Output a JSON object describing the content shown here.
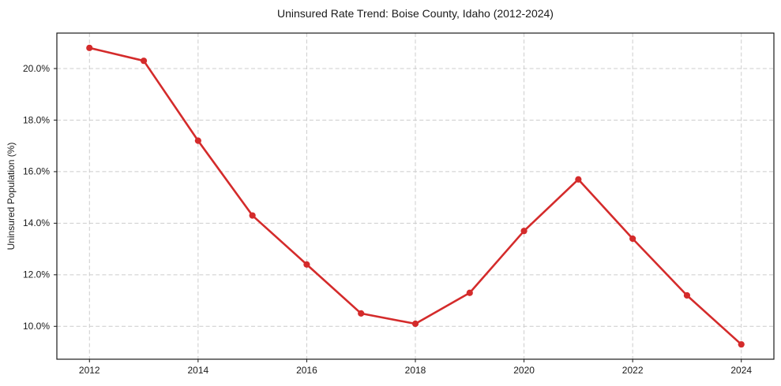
{
  "chart_data": {
    "type": "line",
    "title": "Uninsured Rate Trend: Boise County, Idaho (2012-2024)",
    "xlabel": "",
    "ylabel": "Uninsured Population (%)",
    "x": [
      2012,
      2013,
      2014,
      2015,
      2016,
      2017,
      2018,
      2019,
      2020,
      2021,
      2022,
      2023,
      2024
    ],
    "values": [
      20.8,
      20.3,
      17.2,
      14.3,
      12.4,
      10.5,
      10.1,
      11.3,
      13.7,
      15.7,
      13.4,
      11.2,
      9.3
    ],
    "xlim": [
      2011.4,
      2024.6
    ],
    "ylim": [
      8.725,
      21.375
    ],
    "xticks": [
      2012,
      2014,
      2016,
      2018,
      2020,
      2022,
      2024
    ],
    "xtick_labels": [
      "2012",
      "2014",
      "2016",
      "2018",
      "2020",
      "2022",
      "2024"
    ],
    "yticks": [
      10,
      12,
      14,
      16,
      18,
      20
    ],
    "ytick_labels": [
      "10.0%",
      "12.0%",
      "14.0%",
      "16.0%",
      "18.0%",
      "20.0%"
    ],
    "line_color": "#d42b2b",
    "marker": "circle",
    "grid": "dashed",
    "legend_position": "none"
  }
}
